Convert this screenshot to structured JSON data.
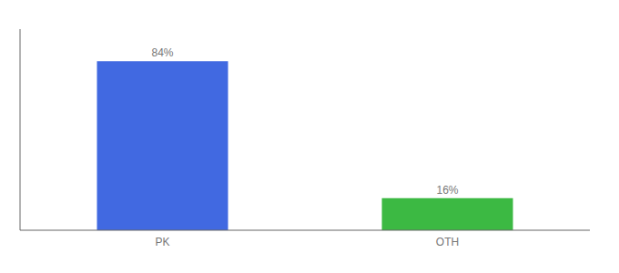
{
  "chart_data": {
    "type": "bar",
    "categories": [
      "PK",
      "OTH"
    ],
    "values": [
      84,
      16
    ],
    "value_labels": [
      "84%",
      "16%"
    ],
    "colors": [
      "#4169E1",
      "#3CB943"
    ],
    "ylim": [
      0,
      100
    ],
    "data_labels": true,
    "tick_labels": "x",
    "grid": false
  }
}
